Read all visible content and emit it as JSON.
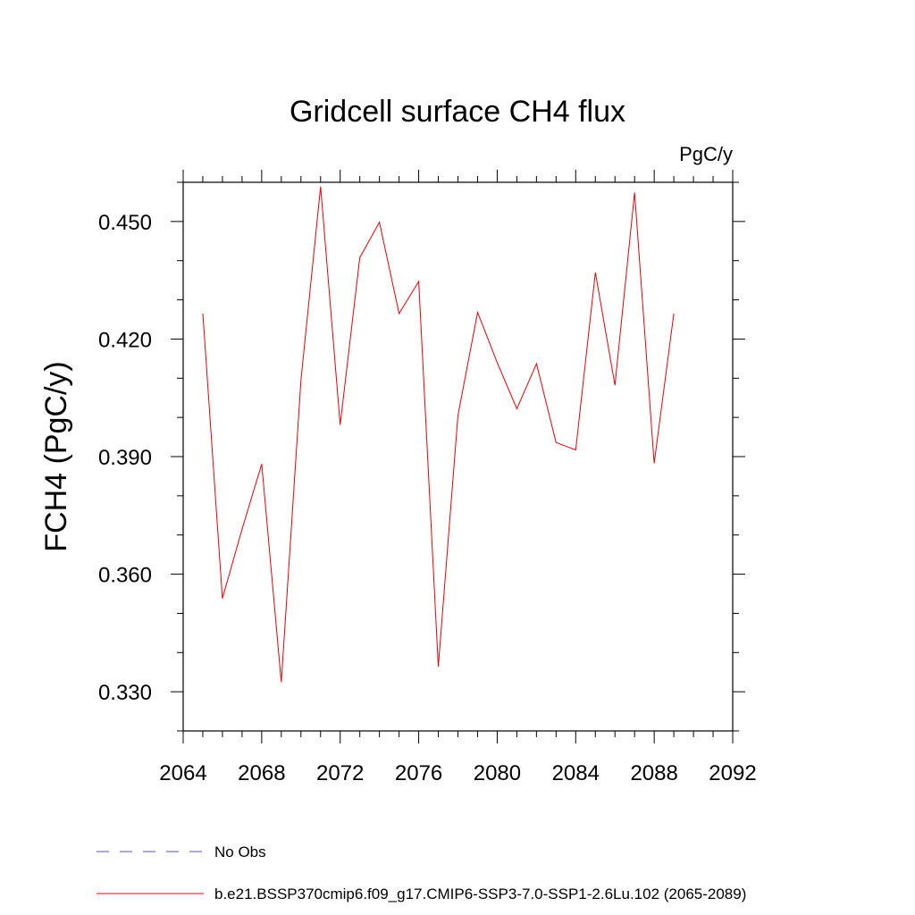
{
  "chart_data": {
    "type": "line",
    "title": "Gridcell surface CH4 flux",
    "units": "PgC/y",
    "ylabel": "FCH4  (PgC/y)",
    "xlabel": "",
    "xlim": [
      2064,
      2092
    ],
    "ylim": [
      0.32,
      0.46
    ],
    "x_ticks": [
      2064,
      2068,
      2072,
      2076,
      2080,
      2084,
      2088,
      2092
    ],
    "x_tick_labels": [
      "2064",
      "2068",
      "2072",
      "2076",
      "2080",
      "2084",
      "2088",
      "2092"
    ],
    "x_minor_step": 1,
    "y_ticks": [
      0.33,
      0.36,
      0.39,
      0.42,
      0.45
    ],
    "y_tick_labels": [
      "0.330",
      "0.360",
      "0.390",
      "0.420",
      "0.450"
    ],
    "y_minor_step": 0.01,
    "grid": false,
    "legend_position": "bottom-left",
    "series": [
      {
        "name": "b.e21.BSSP370cmip6.f09_g17.CMIP6-SSP3-7.0-SSP1-2.6Lu.102 (2065-2089)",
        "color": "#e8000b",
        "style": "solid",
        "x": [
          2065,
          2066,
          2067,
          2068,
          2069,
          2070,
          2071,
          2072,
          2073,
          2074,
          2075,
          2076,
          2077,
          2078,
          2079,
          2080,
          2081,
          2082,
          2083,
          2084,
          2085,
          2086,
          2087,
          2088,
          2089
        ],
        "y": [
          0.4265,
          0.3538,
          0.3715,
          0.3881,
          0.3324,
          0.4095,
          0.4589,
          0.3981,
          0.4408,
          0.4498,
          0.4265,
          0.4347,
          0.3364,
          0.4005,
          0.4268,
          0.414,
          0.4022,
          0.4137,
          0.3936,
          0.3917,
          0.437,
          0.4082,
          0.4574,
          0.3883,
          0.4265
        ]
      }
    ],
    "legend": [
      {
        "label": "No Obs",
        "color": "#5555aa",
        "style": "dashed"
      },
      {
        "label": "b.e21.BSSP370cmip6.f09_g17.CMIP6-SSP3-7.0-SSP1-2.6Lu.102 (2065-2089)",
        "color": "#e8000b",
        "style": "solid"
      }
    ]
  }
}
